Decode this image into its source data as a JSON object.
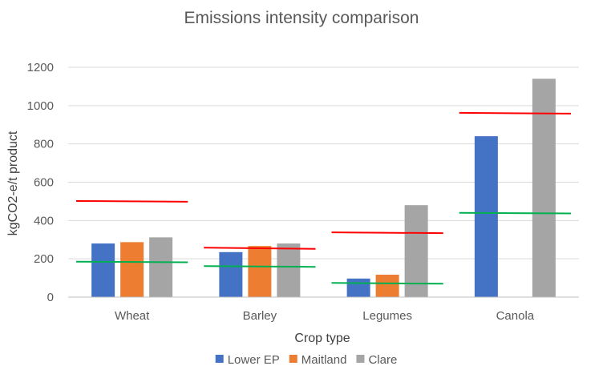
{
  "chart_data": {
    "type": "bar",
    "title": "Emissions intensity comparison",
    "xlabel": "Crop type",
    "ylabel": "kgCO2-e/t product",
    "ylim": [
      0,
      1200
    ],
    "yticks": [
      0,
      200,
      400,
      600,
      800,
      1000,
      1200
    ],
    "grid": true,
    "legend_position": "bottom",
    "categories": [
      "Wheat",
      "Barley",
      "Legumes",
      "Canola"
    ],
    "series": [
      {
        "name": "Lower EP",
        "color": "#4472C4",
        "values": [
          280,
          235,
          97,
          840
        ]
      },
      {
        "name": "Maitland",
        "color": "#ED7D31",
        "values": [
          287,
          267,
          117,
          null
        ]
      },
      {
        "name": "Clare",
        "color": "#A5A5A5",
        "values": [
          312,
          280,
          480,
          1140
        ]
      }
    ],
    "reference_lines": [
      {
        "color": "#FF0000",
        "values": [
          [
            502,
            498
          ],
          [
            258,
            252
          ],
          [
            338,
            334
          ],
          [
            962,
            958
          ]
        ]
      },
      {
        "color": "#00B050",
        "values": [
          [
            185,
            182
          ],
          [
            162,
            158
          ],
          [
            74,
            70
          ],
          [
            440,
            437
          ]
        ]
      }
    ],
    "colors": {
      "gridline": "#D9D9D9",
      "axis": "#BFBFBF",
      "text": "#595959"
    }
  }
}
